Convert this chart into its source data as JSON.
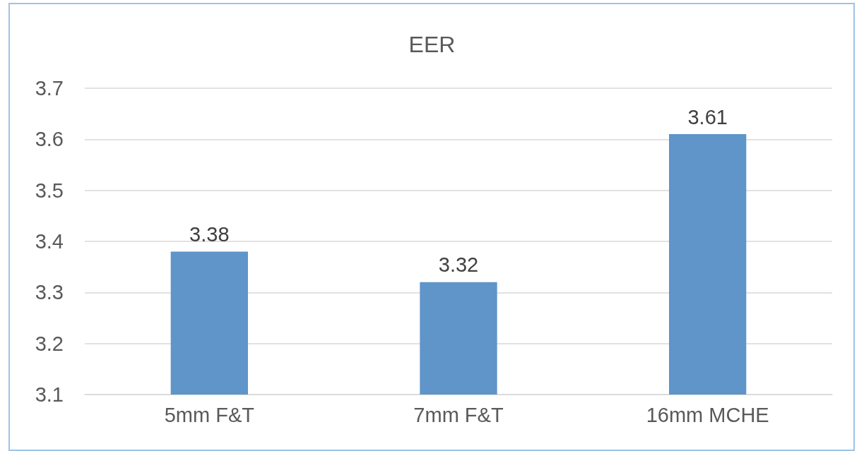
{
  "chart_data": {
    "type": "bar",
    "title": "EER",
    "categories": [
      "5mm F&T",
      "7mm F&T",
      "16mm MCHE"
    ],
    "values": [
      3.38,
      3.32,
      3.61
    ],
    "color": "#5f95c9",
    "ylim": [
      3.1,
      3.7
    ],
    "yticks": [
      3.1,
      3.2,
      3.3,
      3.4,
      3.5,
      3.6,
      3.7
    ],
    "grid": "y",
    "data_labels": true
  }
}
